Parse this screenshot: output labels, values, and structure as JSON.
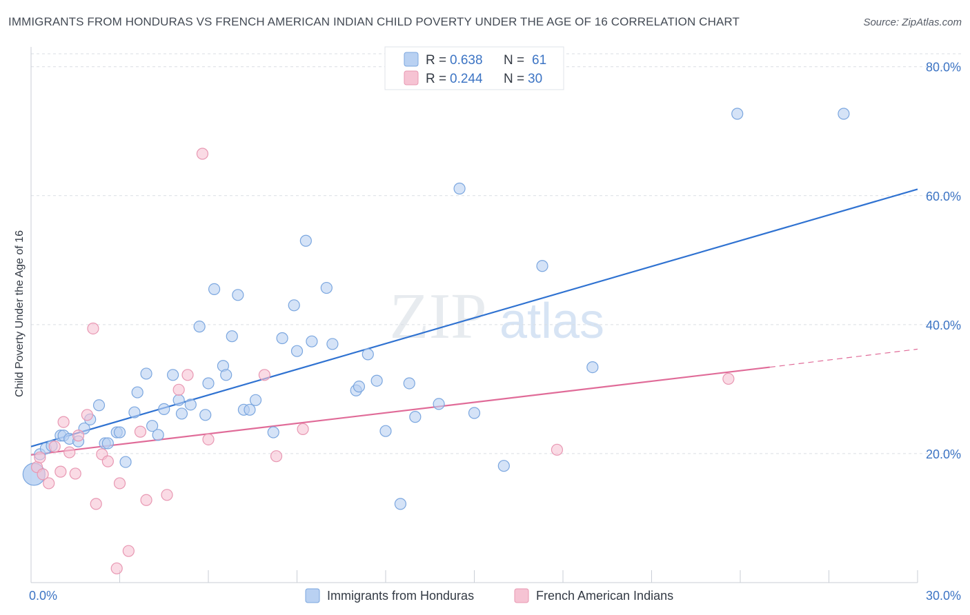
{
  "title": "IMMIGRANTS FROM HONDURAS VS FRENCH AMERICAN INDIAN CHILD POVERTY UNDER THE AGE OF 16 CORRELATION CHART",
  "source": "Source: ZipAtlas.com",
  "watermark": {
    "zip": "ZIP",
    "atlas": "atlas"
  },
  "colors": {
    "blue_fill": "#b9d1f2",
    "blue_stroke": "#7aa6df",
    "blue_line": "#2f72d1",
    "pink_fill": "#f6c3d3",
    "pink_stroke": "#e897b2",
    "pink_line": "#e06b98",
    "grid": "#d9dde3",
    "axis_text": "#3c74c4"
  },
  "legend": {
    "series1": {
      "r_label": "R = ",
      "r_value": "0.638",
      "n_label": "N = ",
      "n_value": "61"
    },
    "series2": {
      "r_label": "R = ",
      "r_value": "0.244",
      "n_label": "N = ",
      "n_value": "30"
    }
  },
  "chart_data": {
    "type": "scatter",
    "title": "IMMIGRANTS FROM HONDURAS VS FRENCH AMERICAN INDIAN CHILD POVERTY UNDER THE AGE OF 16 CORRELATION CHART",
    "xlabel": "",
    "ylabel": "Child Poverty Under the Age of 16",
    "xlim": [
      0,
      30
    ],
    "ylim": [
      0,
      82
    ],
    "x_tick_labels": [
      "0.0%",
      "30.0%"
    ],
    "y_ticks": [
      20,
      40,
      60,
      80
    ],
    "y_tick_labels": [
      "20.0%",
      "40.0%",
      "60.0%",
      "80.0%"
    ],
    "series": [
      {
        "name": "Immigrants from Honduras",
        "color": "blue",
        "trend": {
          "x0": 0,
          "y0": 21.1,
          "x1": 30,
          "y1": 61.0
        },
        "points": [
          [
            0.1,
            16.8
          ],
          [
            0.3,
            19.9
          ],
          [
            0.5,
            20.8
          ],
          [
            0.7,
            21.2
          ],
          [
            1.0,
            22.8
          ],
          [
            1.1,
            22.8
          ],
          [
            1.3,
            22.3
          ],
          [
            1.6,
            21.9
          ],
          [
            1.8,
            23.9
          ],
          [
            2.0,
            25.3
          ],
          [
            2.3,
            27.5
          ],
          [
            2.5,
            21.6
          ],
          [
            2.6,
            21.6
          ],
          [
            2.9,
            23.3
          ],
          [
            3.0,
            23.3
          ],
          [
            3.2,
            18.7
          ],
          [
            3.5,
            26.4
          ],
          [
            3.6,
            29.5
          ],
          [
            3.9,
            32.4
          ],
          [
            4.1,
            24.3
          ],
          [
            4.3,
            22.9
          ],
          [
            4.5,
            26.9
          ],
          [
            4.8,
            32.2
          ],
          [
            5.0,
            28.3
          ],
          [
            5.1,
            26.2
          ],
          [
            5.4,
            27.6
          ],
          [
            5.7,
            39.7
          ],
          [
            5.9,
            26.0
          ],
          [
            6.0,
            30.9
          ],
          [
            6.2,
            45.5
          ],
          [
            6.5,
            33.6
          ],
          [
            6.6,
            32.2
          ],
          [
            6.8,
            38.2
          ],
          [
            7.0,
            44.6
          ],
          [
            7.2,
            26.8
          ],
          [
            7.4,
            26.8
          ],
          [
            7.6,
            28.3
          ],
          [
            8.2,
            23.3
          ],
          [
            8.5,
            37.9
          ],
          [
            8.9,
            43.0
          ],
          [
            9.0,
            35.9
          ],
          [
            9.3,
            53.0
          ],
          [
            9.5,
            37.4
          ],
          [
            10.0,
            45.7
          ],
          [
            10.2,
            37.0
          ],
          [
            11.0,
            29.8
          ],
          [
            11.1,
            30.4
          ],
          [
            11.4,
            35.4
          ],
          [
            11.7,
            31.3
          ],
          [
            12.0,
            23.5
          ],
          [
            12.5,
            12.2
          ],
          [
            12.8,
            30.9
          ],
          [
            13.0,
            25.7
          ],
          [
            13.8,
            27.7
          ],
          [
            14.5,
            61.1
          ],
          [
            15.0,
            26.3
          ],
          [
            16.0,
            18.1
          ],
          [
            17.3,
            49.1
          ],
          [
            19.0,
            33.4
          ],
          [
            23.9,
            72.7
          ],
          [
            27.5,
            72.7
          ]
        ]
      },
      {
        "name": "French American Indians",
        "color": "pink",
        "trend": {
          "x0": 0,
          "y0": 19.8,
          "x1": 25,
          "y1": 33.4,
          "dashed_to_x": 30,
          "dashed_to_y": 36.2
        },
        "points": [
          [
            0.2,
            17.9
          ],
          [
            0.4,
            16.8
          ],
          [
            0.6,
            15.4
          ],
          [
            0.8,
            21.1
          ],
          [
            1.0,
            17.2
          ],
          [
            1.1,
            24.9
          ],
          [
            1.3,
            20.2
          ],
          [
            1.5,
            16.9
          ],
          [
            1.6,
            22.8
          ],
          [
            1.9,
            26.0
          ],
          [
            2.2,
            12.2
          ],
          [
            2.1,
            39.4
          ],
          [
            2.4,
            19.9
          ],
          [
            2.6,
            18.8
          ],
          [
            2.9,
            2.2
          ],
          [
            3.0,
            15.4
          ],
          [
            3.3,
            4.9
          ],
          [
            3.7,
            23.4
          ],
          [
            3.9,
            12.8
          ],
          [
            4.6,
            13.6
          ],
          [
            5.0,
            29.9
          ],
          [
            5.3,
            32.2
          ],
          [
            5.8,
            66.5
          ],
          [
            6.0,
            22.2
          ],
          [
            7.9,
            32.2
          ],
          [
            8.3,
            19.6
          ],
          [
            9.2,
            23.8
          ],
          [
            17.8,
            20.6
          ],
          [
            23.6,
            31.6
          ],
          [
            0.3,
            19.4
          ]
        ]
      }
    ]
  },
  "bottom_legend": {
    "item1": "Immigrants from Honduras",
    "item2": "French American Indians"
  }
}
